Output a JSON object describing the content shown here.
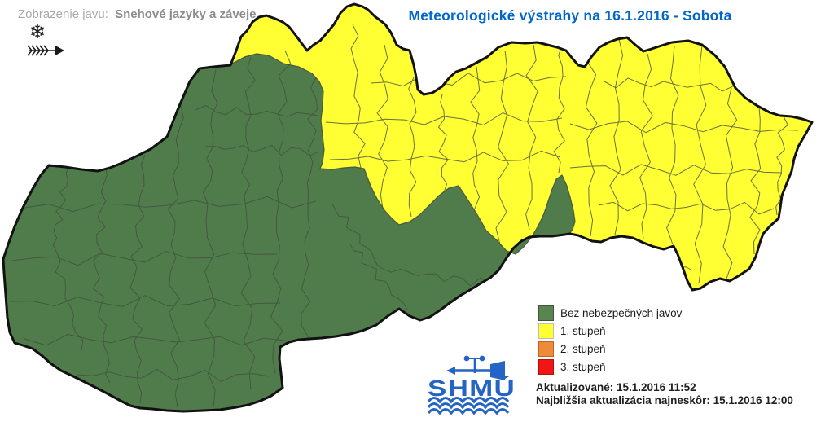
{
  "header": {
    "phenomenon_label": "Zobrazenie javu:",
    "phenomenon_value": "Snehové jazyky a záveje",
    "title": "Meteorologické výstrahy na 16.1.2016 - Sobota",
    "title_color": "#0066CC"
  },
  "phenomenon_icons": [
    {
      "name": "snowflake-icon",
      "glyph": "❄"
    },
    {
      "name": "wind-arrow-icon"
    }
  ],
  "map": {
    "name": "slovakia-districts-warning-map",
    "no_warning_fill": "#507C4B",
    "level1_fill": "#FFFF33",
    "outline_color": "#121212",
    "district_line_color": "#41503f"
  },
  "legend": {
    "items": [
      {
        "label": "Bez nebezpečných javov",
        "color": "#5A8452",
        "border": "#3A5A34"
      },
      {
        "label": "1. stupeň",
        "color": "#FFFF33",
        "border": "#BDBDBD"
      },
      {
        "label": "2. stupeň",
        "color": "#EF8A3A",
        "border": "#C2661E"
      },
      {
        "label": "3. stupeň",
        "color": "#F21515",
        "border": "#B30F0F"
      }
    ]
  },
  "logo": {
    "text": "SHMÚ",
    "color": "#2464C5"
  },
  "footer": {
    "updated": "Aktualizované: 15.1.2016 11:52",
    "next_update": "Najbližšia aktualizácia najneskôr: 15.1.2016 12:00"
  }
}
